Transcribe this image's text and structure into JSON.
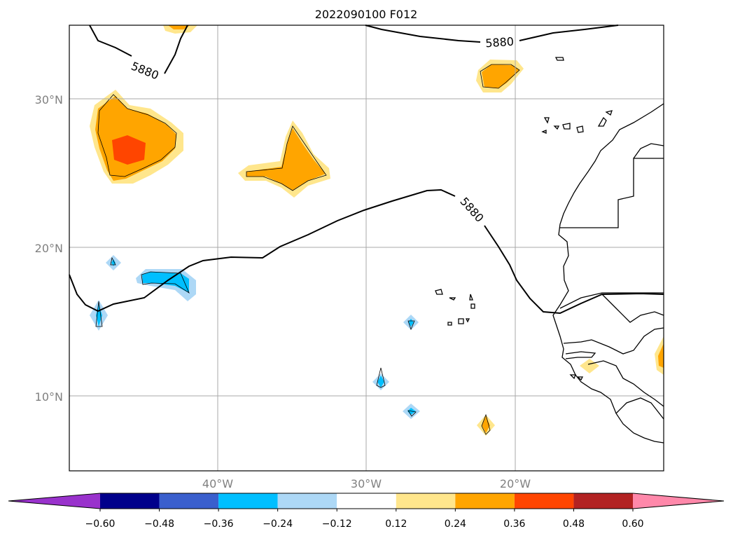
{
  "title": "2022090100 F012",
  "map": {
    "lat_range": [
      5,
      35
    ],
    "lon_range": [
      -50,
      -10
    ],
    "lat_ticks": [
      "30°N",
      "20°N",
      "10°N"
    ],
    "lon_ticks": [
      "40°W",
      "30°W",
      "20°W"
    ],
    "grid": true,
    "contour_value": "5880",
    "contour_labels": [
      "5880",
      "5880",
      "5880"
    ]
  },
  "colorbar": {
    "extend": "both",
    "levels": [
      "−0.60",
      "−0.48",
      "−0.36",
      "−0.24",
      "−0.12",
      "0.12",
      "0.24",
      "0.36",
      "0.48",
      "0.60"
    ],
    "colors": [
      "#9932cc",
      "#00008b",
      "#3a5fcd",
      "#00bfff",
      "#add8f6",
      "#ffffff",
      "#ffe68c",
      "#ffa500",
      "#ff4500",
      "#b22222",
      "#ff88aa"
    ]
  }
}
